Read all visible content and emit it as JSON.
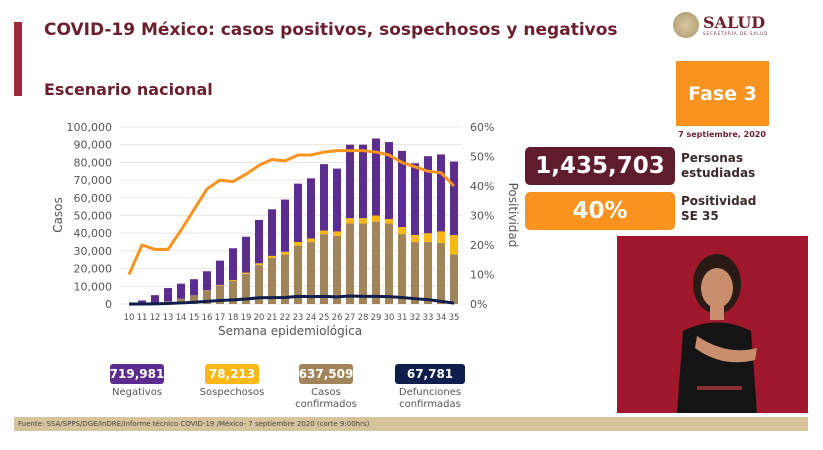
{
  "header": {
    "title": "COVID-19 México: casos positivos, sospechosos y negativos",
    "subtitle": "Escenario nacional",
    "logo_text": "SALUD",
    "logo_subtext": "SECRETARÍA DE SALUD"
  },
  "phase": {
    "label": "Fase 3",
    "date": "7 septiembre, 2020",
    "color": "#f7931e"
  },
  "stats": {
    "personas_value": "1,435,703",
    "personas_label_1": "Personas",
    "personas_label_2": "estudiadas",
    "positividad_value": "40%",
    "positividad_label_1": "Positividad",
    "positividad_label_2": "SE 35"
  },
  "legend": [
    {
      "value": "719,981",
      "label": "Negativos",
      "color": "#5b2d8e"
    },
    {
      "value": "78,213",
      "label": "Sospechosos",
      "color": "#fbb714"
    },
    {
      "value": "637,509",
      "label": "Casos confirmados",
      "color": "#a2845a"
    },
    {
      "value": "67,781",
      "label": "Defunciones confirmadas",
      "color": "#0f1f4d"
    }
  ],
  "footer": "Fuente: SSA/SPPS/DGE/InDRE/Informe técnico COVID-19 /México- 7 septiembre 2020 (corte 9:00hrs)",
  "chart_data": {
    "type": "bar",
    "stacked": true,
    "xlabel": "Semana epidemiológica",
    "ylabel": "Casos",
    "y2label": "Positividad",
    "ylim": [
      0,
      100000
    ],
    "y2lim": [
      0,
      60
    ],
    "yticks": [
      "0",
      "10,000",
      "20,000",
      "30,000",
      "40,000",
      "50,000",
      "60,000",
      "70,000",
      "80,000",
      "90,000",
      "100,000"
    ],
    "y2ticks": [
      "0%",
      "10%",
      "20%",
      "30%",
      "40%",
      "50%",
      "60%"
    ],
    "grid": true,
    "categories": [
      "10",
      "11",
      "12",
      "13",
      "14",
      "15",
      "16",
      "17",
      "18",
      "19",
      "20",
      "21",
      "22",
      "23",
      "24",
      "25",
      "26",
      "27",
      "28",
      "29",
      "30",
      "31",
      "32",
      "33",
      "34",
      "35"
    ],
    "series": [
      {
        "name": "Casos confirmados",
        "kind": "bar",
        "color": "#a2845a",
        "values": [
          0,
          500,
          800,
          1500,
          3000,
          4800,
          7500,
          10500,
          13000,
          17000,
          22000,
          26000,
          28000,
          33000,
          35000,
          39500,
          38500,
          45500,
          45500,
          46500,
          45500,
          39500,
          35000,
          35000,
          34500,
          28000
        ]
      },
      {
        "name": "Sospechosos",
        "kind": "bar",
        "color": "#fbb714",
        "values": [
          0,
          0,
          0,
          0,
          0,
          100,
          200,
          300,
          500,
          700,
          1000,
          1200,
          1500,
          2000,
          2000,
          2000,
          2500,
          3000,
          3000,
          3500,
          2500,
          4000,
          4000,
          5000,
          6500,
          11000
        ]
      },
      {
        "name": "Negativos",
        "kind": "bar",
        "color": "#5b2d8e",
        "values": [
          0,
          1500,
          4200,
          7500,
          8500,
          9100,
          10800,
          13700,
          18000,
          20300,
          24500,
          26300,
          29500,
          33000,
          34000,
          37500,
          35500,
          41500,
          41500,
          43500,
          43500,
          43000,
          40500,
          43500,
          43500,
          41500
        ]
      },
      {
        "name": "Defunciones confirmadas",
        "kind": "line",
        "axis": "left",
        "color": "#0f1f4d",
        "values": [
          0,
          0,
          100,
          300,
          600,
          1000,
          1500,
          2000,
          2300,
          2800,
          3500,
          3600,
          3700,
          4300,
          4200,
          4300,
          4000,
          4500,
          4300,
          4300,
          4200,
          3700,
          3000,
          2500,
          1500,
          500
        ]
      },
      {
        "name": "Positividad",
        "kind": "line",
        "axis": "right",
        "color": "#f7931e",
        "values": [
          10,
          20,
          18.5,
          18.5,
          25,
          32,
          39,
          42,
          41.5,
          44,
          47,
          49,
          48.5,
          50.5,
          50.5,
          51.5,
          52,
          52,
          52,
          51.5,
          50.5,
          48,
          46.5,
          45,
          44.5,
          40
        ]
      }
    ]
  }
}
